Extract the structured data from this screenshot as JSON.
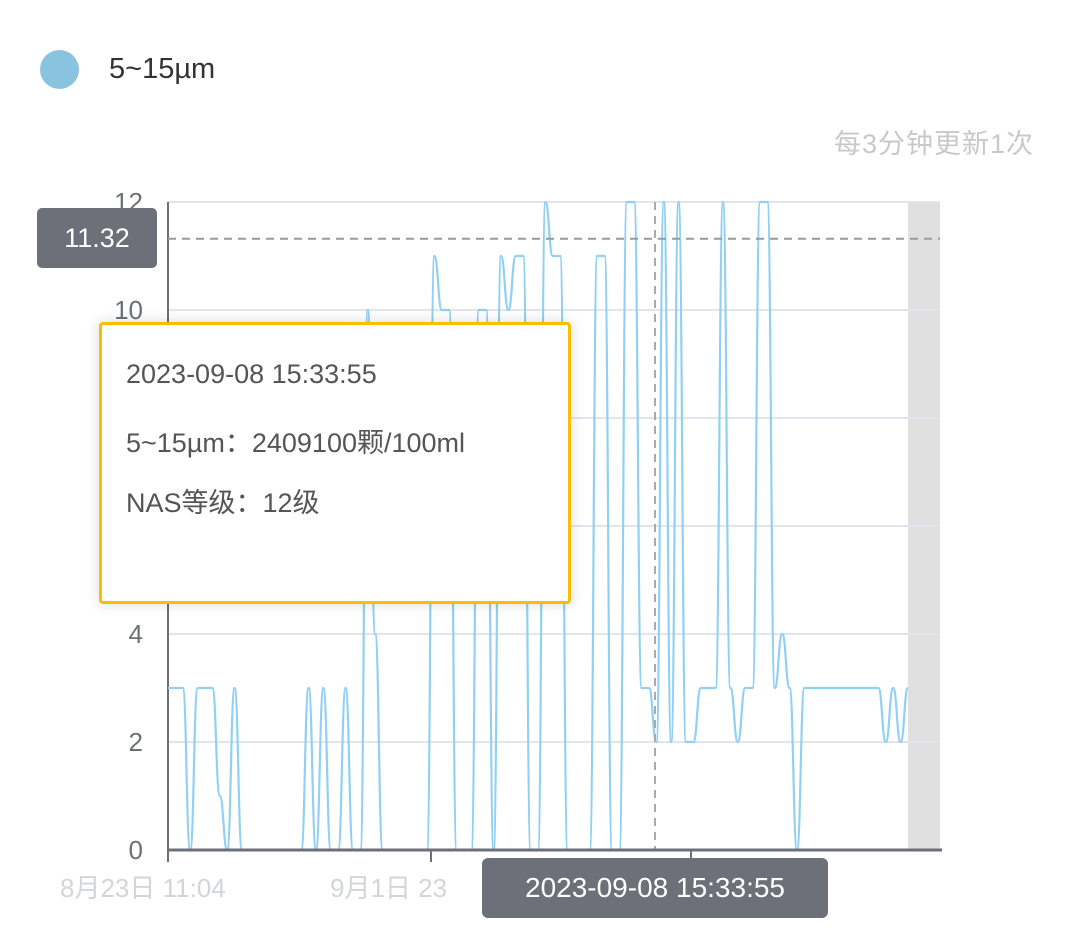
{
  "legend": {
    "label": "5~15µm",
    "color": "#8ac3e0"
  },
  "update_note": "每3分钟更新1次",
  "tooltip": {
    "time": "2023-09-08 15:33:55",
    "value_line": "5~15µm：2409100颗/100ml",
    "level_line": "NAS等级：12级"
  },
  "axis_pointer": {
    "y_value": "11.32",
    "x_value": "2023-09-08 15:33:55"
  },
  "chart_data": {
    "type": "line",
    "ylim": [
      0,
      12
    ],
    "y_ticks": [
      0,
      2,
      4,
      6,
      8,
      10,
      12
    ],
    "y_tick_labels": [
      "0",
      "2",
      "4",
      "6",
      "8",
      "10",
      "12"
    ],
    "x_tick_labels": [
      "8月23日 11:04",
      "9月1日 23"
    ],
    "grid": true,
    "line_color": "#91d0f2",
    "hover_value": 11.32,
    "series": [
      {
        "name": "5~15µm",
        "values": [
          3,
          3,
          3,
          0,
          3,
          3,
          3,
          1,
          0,
          3,
          0,
          0,
          0,
          0,
          0,
          0,
          0,
          0,
          0,
          3,
          0,
          3,
          0,
          0,
          3,
          0,
          0,
          10,
          4,
          0,
          0,
          0,
          0,
          0,
          0,
          0,
          11,
          10,
          10,
          0,
          0,
          0,
          10,
          10,
          0,
          11,
          10,
          11,
          11,
          0,
          0,
          12,
          11,
          11,
          0,
          0,
          0,
          0,
          11,
          11,
          0,
          0,
          12,
          12,
          3,
          3,
          2,
          12,
          2,
          12,
          2,
          2,
          3,
          3,
          3,
          12,
          3,
          2,
          3,
          3,
          12,
          12,
          3,
          4,
          3,
          0,
          3,
          3,
          3,
          3,
          3,
          3,
          3,
          3,
          3,
          3,
          3,
          2,
          3,
          2,
          3
        ]
      }
    ]
  }
}
